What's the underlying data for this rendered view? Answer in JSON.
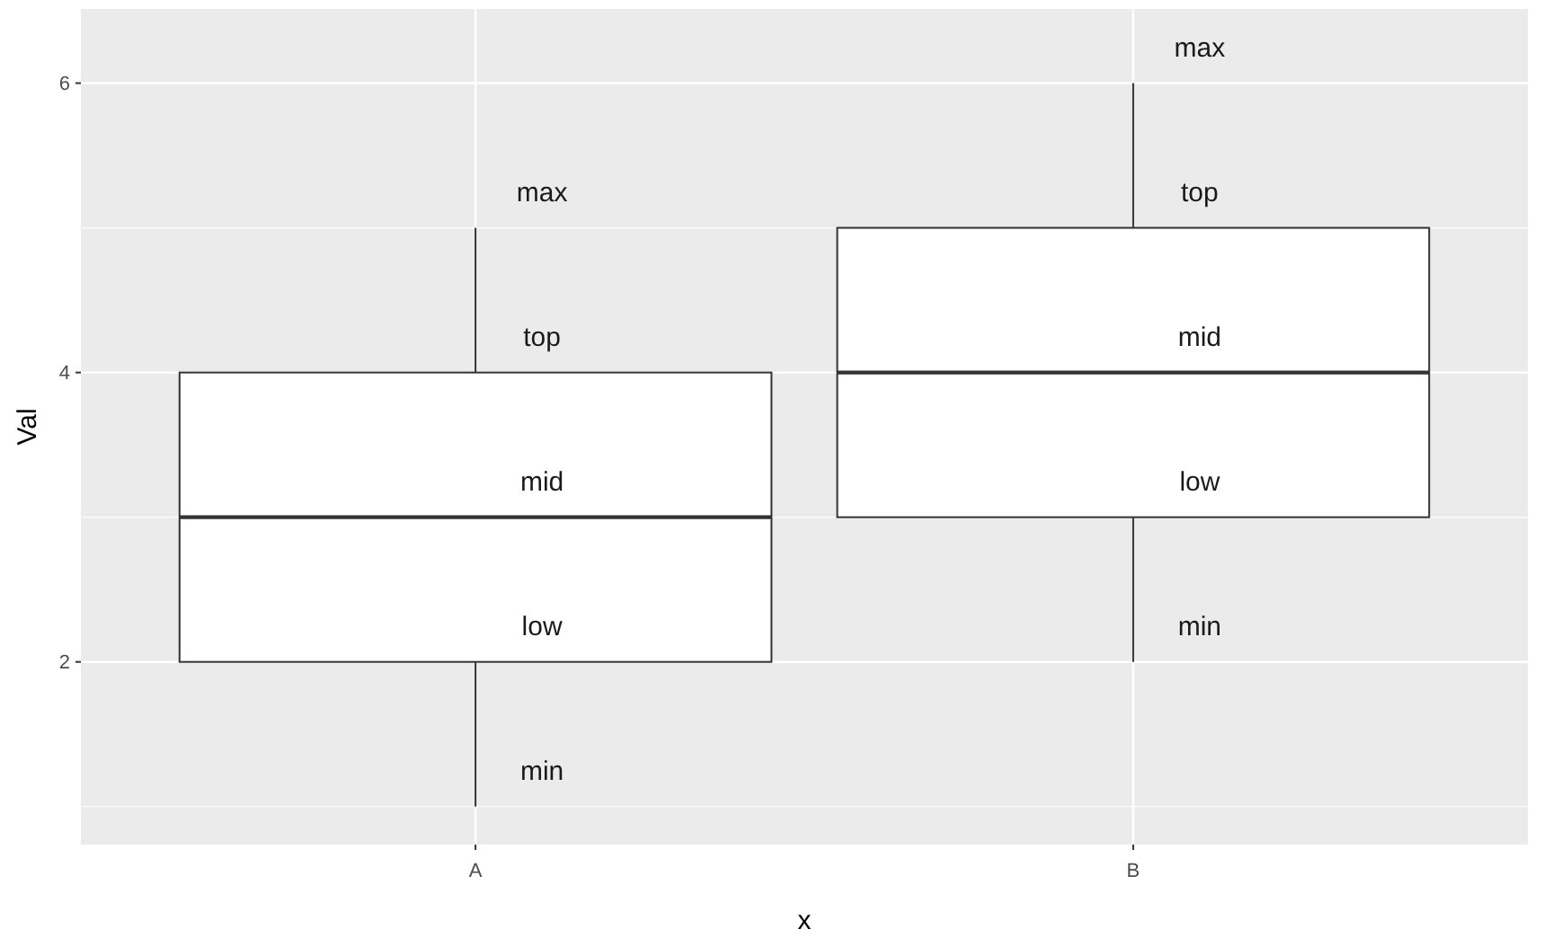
{
  "chart_data": {
    "type": "box",
    "xlabel": "x",
    "ylabel": "Val",
    "categories": [
      "A",
      "B"
    ],
    "boxes": [
      {
        "low": 1,
        "q1": 2,
        "median": 3,
        "q3": 4,
        "high": 5
      },
      {
        "low": 2,
        "q1": 3,
        "median": 4,
        "q3": 5,
        "high": 6
      }
    ],
    "ylim": [
      0.7375,
      6.5125
    ],
    "yticks": [
      2,
      4,
      6
    ],
    "grid": true,
    "annotations": [
      {
        "text": "max",
        "x": "A",
        "y": 5
      },
      {
        "text": "top",
        "x": "A",
        "y": 4
      },
      {
        "text": "mid",
        "x": "A",
        "y": 3
      },
      {
        "text": "low",
        "x": "A",
        "y": 2
      },
      {
        "text": "min",
        "x": "A",
        "y": 1
      },
      {
        "text": "max",
        "x": "B",
        "y": 6
      },
      {
        "text": "top",
        "x": "B",
        "y": 5
      },
      {
        "text": "mid",
        "x": "B",
        "y": 4
      },
      {
        "text": "low",
        "x": "B",
        "y": 3
      },
      {
        "text": "min",
        "x": "B",
        "y": 2
      }
    ]
  }
}
